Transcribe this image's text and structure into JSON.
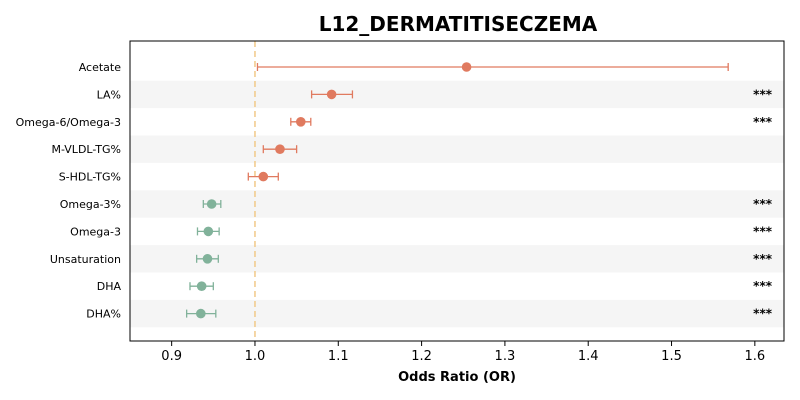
{
  "chart_data": {
    "type": "forest",
    "title": "L12_DERMATITISECZEMA",
    "xlabel": "Odds Ratio (OR)",
    "xlim": [
      0.85,
      1.635
    ],
    "xticks": [
      "0.9",
      "1.0",
      "1.1",
      "1.2",
      "1.3",
      "1.4",
      "1.5",
      "1.6"
    ],
    "reference_line": 1.0,
    "colors": {
      "risk": "#e07a5f",
      "protective": "#81b29a",
      "reference": "#f2cc8f",
      "band": "#f5f5f5"
    },
    "rows": [
      {
        "label": "Acetate",
        "or": 1.254,
        "lo": 1.003,
        "hi": 1.568,
        "sig": "",
        "group": "risk"
      },
      {
        "label": "LA%",
        "or": 1.092,
        "lo": 1.068,
        "hi": 1.117,
        "sig": "***",
        "group": "risk"
      },
      {
        "label": "Omega-6/Omega-3",
        "or": 1.055,
        "lo": 1.043,
        "hi": 1.067,
        "sig": "***",
        "group": "risk"
      },
      {
        "label": "M-VLDL-TG%",
        "or": 1.03,
        "lo": 1.01,
        "hi": 1.05,
        "sig": "",
        "group": "risk"
      },
      {
        "label": "S-HDL-TG%",
        "or": 1.01,
        "lo": 0.992,
        "hi": 1.028,
        "sig": "",
        "group": "risk"
      },
      {
        "label": "Omega-3%",
        "or": 0.948,
        "lo": 0.938,
        "hi": 0.959,
        "sig": "***",
        "group": "protective"
      },
      {
        "label": "Omega-3",
        "or": 0.944,
        "lo": 0.931,
        "hi": 0.957,
        "sig": "***",
        "group": "protective"
      },
      {
        "label": "Unsaturation",
        "or": 0.943,
        "lo": 0.93,
        "hi": 0.956,
        "sig": "***",
        "group": "protective"
      },
      {
        "label": "DHA",
        "or": 0.936,
        "lo": 0.922,
        "hi": 0.95,
        "sig": "***",
        "group": "protective"
      },
      {
        "label": "DHA%",
        "or": 0.935,
        "lo": 0.918,
        "hi": 0.953,
        "sig": "***",
        "group": "protective"
      }
    ]
  }
}
